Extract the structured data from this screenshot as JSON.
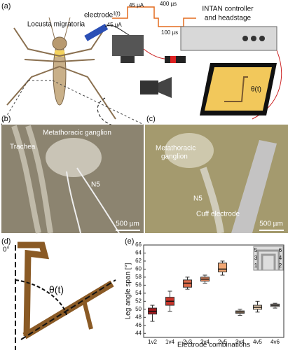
{
  "panel_a": {
    "label": "(a)",
    "species": "Locusta migratoria",
    "electrode": "electrode",
    "pulse_high": "45 µA",
    "pulse_width": "400 µs",
    "current": "I(t)",
    "pulse_low": "-45 µA",
    "pulse_gap": "100 µs",
    "controller_line1": "INTAN controller",
    "controller_line2": "and headstage",
    "angle": "θ(t)"
  },
  "panel_b": {
    "label": "(b)",
    "ganglion": "Metathoracic ganglion",
    "trachea": "Trachea",
    "nerve": "N5",
    "scale": "500 µm"
  },
  "panel_c": {
    "label": "(c)",
    "ganglion_line1": "Metathoracic",
    "ganglion_line2": "ganglion",
    "nerve": "N5",
    "cuff": "Cuff electrode",
    "scale": "500 µm"
  },
  "panel_d": {
    "label": "(d)",
    "zero": "0°",
    "angle": "θ(t)"
  },
  "panel_e": {
    "label": "(e)",
    "inset_labels": [
      "6",
      "4",
      "2",
      "5",
      "3",
      "1"
    ]
  },
  "chart_data": {
    "type": "box",
    "categories": [
      "1v2",
      "1v4",
      "2v3",
      "2v4",
      "2v5",
      "3v4",
      "4v5",
      "4v6"
    ],
    "boxes": [
      {
        "min": 47,
        "q1": 48.8,
        "median": 49.5,
        "q3": 50.3,
        "max": 51,
        "color": "#a3191d"
      },
      {
        "min": 49.5,
        "q1": 51,
        "median": 52,
        "q3": 53,
        "max": 54.5,
        "color": "#c9352b"
      },
      {
        "min": 55,
        "q1": 55.5,
        "median": 56.5,
        "q3": 57.3,
        "max": 58,
        "color": "#de6b4a"
      },
      {
        "min": 56.5,
        "q1": 57,
        "median": 57.5,
        "q3": 58,
        "max": 58.5,
        "color": "#e98a5e"
      },
      {
        "min": 58.5,
        "q1": 59.3,
        "median": 60,
        "q3": 61.5,
        "max": 62,
        "color": "#f1a774"
      },
      {
        "min": 48.5,
        "q1": 49,
        "median": 49.3,
        "q3": 49.6,
        "max": 50,
        "color": "#f6c79b"
      },
      {
        "min": 49.3,
        "q1": 50,
        "median": 50.5,
        "q3": 51,
        "max": 52,
        "color": "#f9dcbc"
      },
      {
        "min": 50.3,
        "q1": 50.7,
        "median": 51,
        "q3": 51.3,
        "max": 51.5,
        "color": "#fbebd9"
      }
    ],
    "y_label": "Leg angle span [°]",
    "x_label": "Electrode combinations",
    "ylim": [
      43,
      66
    ],
    "yticks": [
      44,
      46,
      48,
      50,
      52,
      54,
      56,
      58,
      60,
      62,
      64,
      66
    ]
  }
}
